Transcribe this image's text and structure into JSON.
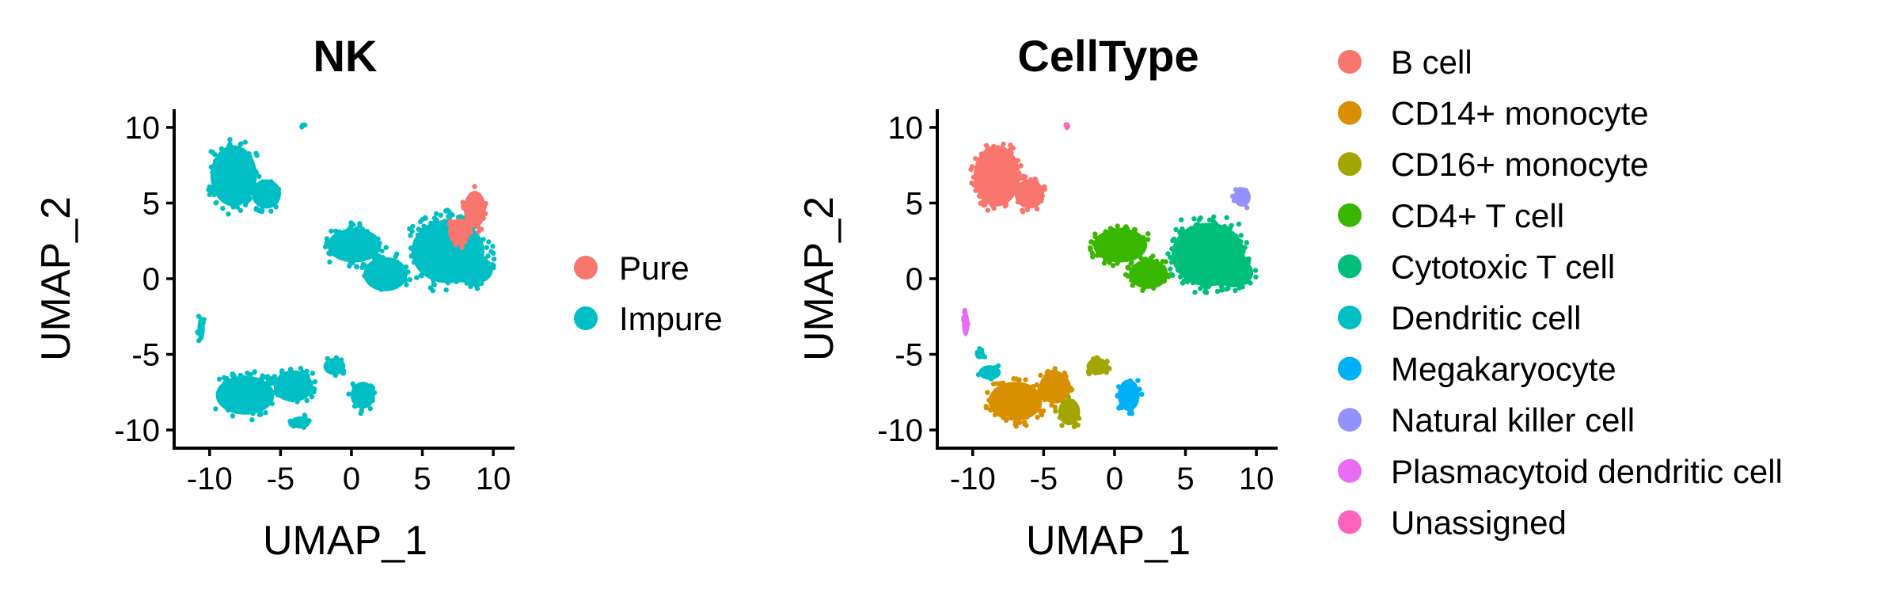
{
  "chart_data": [
    {
      "type": "scatter",
      "title": "NK",
      "xlabel": "UMAP_1",
      "ylabel": "UMAP_2",
      "xlim": [
        -12.5,
        11.5
      ],
      "ylim": [
        -11.2,
        11.2
      ],
      "xticks": [
        -10,
        -5,
        0,
        5,
        10
      ],
      "yticks": [
        -10,
        -5,
        0,
        5,
        10
      ],
      "xtick_labels": [
        "-10",
        "-5",
        "0",
        "5",
        "10"
      ],
      "ytick_labels": [
        "-10",
        "-5",
        "0",
        "5",
        "10"
      ],
      "grid": false,
      "legend_position": "right",
      "series": [
        {
          "name": "Impure",
          "color": "#00BFC4",
          "clusters": [
            {
              "cx": -8.3,
              "cy": 6.8,
              "rx": 1.9,
              "ry": 2.5
            },
            {
              "cx": -6.0,
              "cy": 5.6,
              "rx": 1.2,
              "ry": 1.2
            },
            {
              "cx": 0.2,
              "cy": 2.2,
              "rx": 2.2,
              "ry": 1.4
            },
            {
              "cx": 2.4,
              "cy": 0.3,
              "rx": 1.8,
              "ry": 1.4
            },
            {
              "cx": 6.8,
              "cy": 1.8,
              "rx": 3.0,
              "ry": 2.6
            },
            {
              "cx": 8.6,
              "cy": 0.6,
              "rx": 1.6,
              "ry": 1.2
            },
            {
              "cx": -7.5,
              "cy": -7.7,
              "rx": 2.4,
              "ry": 1.6
            },
            {
              "cx": -4.1,
              "cy": -7.1,
              "rx": 1.6,
              "ry": 1.3
            },
            {
              "cx": -3.6,
              "cy": -9.5,
              "rx": 0.8,
              "ry": 0.5
            },
            {
              "cx": 0.8,
              "cy": -7.7,
              "rx": 1.0,
              "ry": 1.1
            },
            {
              "cx": -1.2,
              "cy": -5.8,
              "rx": 0.9,
              "ry": 0.7
            },
            {
              "cx": -10.6,
              "cy": -3.3,
              "rx": 0.3,
              "ry": 1.0
            },
            {
              "cx": -3.4,
              "cy": 10.1,
              "rx": 0.15,
              "ry": 0.12
            }
          ]
        },
        {
          "name": "Pure",
          "color": "#F8766D",
          "clusters": [
            {
              "cx": 8.7,
              "cy": 4.6,
              "rx": 0.9,
              "ry": 1.5
            },
            {
              "cx": 7.6,
              "cy": 3.1,
              "rx": 0.9,
              "ry": 1.1
            }
          ]
        }
      ]
    },
    {
      "type": "scatter",
      "title": "CellType",
      "xlabel": "UMAP_1",
      "ylabel": "UMAP_2",
      "xlim": [
        -12.5,
        11.5
      ],
      "ylim": [
        -11.2,
        11.2
      ],
      "xticks": [
        -10,
        -5,
        0,
        5,
        10
      ],
      "yticks": [
        -10,
        -5,
        0,
        5,
        10
      ],
      "xtick_labels": [
        "-10",
        "-5",
        "0",
        "5",
        "10"
      ],
      "ytick_labels": [
        "-10",
        "-5",
        "0",
        "5",
        "10"
      ],
      "grid": false,
      "legend_position": "right",
      "series": [
        {
          "name": "B cell",
          "color": "#F8766D",
          "clusters": [
            {
              "cx": -8.3,
              "cy": 6.8,
              "rx": 1.9,
              "ry": 2.5
            },
            {
              "cx": -6.0,
              "cy": 5.6,
              "rx": 1.2,
              "ry": 1.2
            }
          ]
        },
        {
          "name": "CD14+ monocyte",
          "color": "#D89000",
          "clusters": [
            {
              "cx": -7.0,
              "cy": -8.1,
              "rx": 2.2,
              "ry": 1.6
            },
            {
              "cx": -4.2,
              "cy": -7.2,
              "rx": 1.3,
              "ry": 1.3
            }
          ]
        },
        {
          "name": "CD16+ monocyte",
          "color": "#A3A500",
          "clusters": [
            {
              "cx": -3.2,
              "cy": -8.8,
              "rx": 0.9,
              "ry": 1.1
            },
            {
              "cx": -1.2,
              "cy": -5.8,
              "rx": 0.9,
              "ry": 0.7
            }
          ]
        },
        {
          "name": "CD4+ T cell",
          "color": "#39B600",
          "clusters": [
            {
              "cx": 0.4,
              "cy": 2.2,
              "rx": 2.2,
              "ry": 1.4
            },
            {
              "cx": 2.4,
              "cy": 0.3,
              "rx": 1.6,
              "ry": 1.2
            }
          ]
        },
        {
          "name": "Cytotoxic T cell",
          "color": "#00BF7D",
          "clusters": [
            {
              "cx": 6.6,
              "cy": 1.6,
              "rx": 3.0,
              "ry": 2.6
            },
            {
              "cx": 8.4,
              "cy": 0.4,
              "rx": 1.6,
              "ry": 1.2
            }
          ]
        },
        {
          "name": "Dendritic cell",
          "color": "#00BFC4",
          "clusters": [
            {
              "cx": -8.8,
              "cy": -6.2,
              "rx": 0.9,
              "ry": 0.6
            },
            {
              "cx": -9.5,
              "cy": -5.0,
              "rx": 0.4,
              "ry": 0.4
            }
          ]
        },
        {
          "name": "Megakaryocyte",
          "color": "#00B0F6",
          "clusters": [
            {
              "cx": 1.0,
              "cy": -7.7,
              "rx": 0.9,
              "ry": 1.3
            }
          ]
        },
        {
          "name": "Natural killer cell",
          "color": "#9590FF",
          "clusters": [
            {
              "cx": 9.0,
              "cy": 5.4,
              "rx": 0.7,
              "ry": 0.8
            }
          ]
        },
        {
          "name": "Plasmacytoid dendritic cell",
          "color": "#E76BF3",
          "clusters": [
            {
              "cx": -10.5,
              "cy": -3.0,
              "rx": 0.3,
              "ry": 1.0
            }
          ]
        },
        {
          "name": "Unassigned",
          "color": "#FF62BC",
          "clusters": [
            {
              "cx": -3.4,
              "cy": 10.1,
              "rx": 0.12,
              "ry": 0.12
            }
          ]
        }
      ]
    }
  ]
}
